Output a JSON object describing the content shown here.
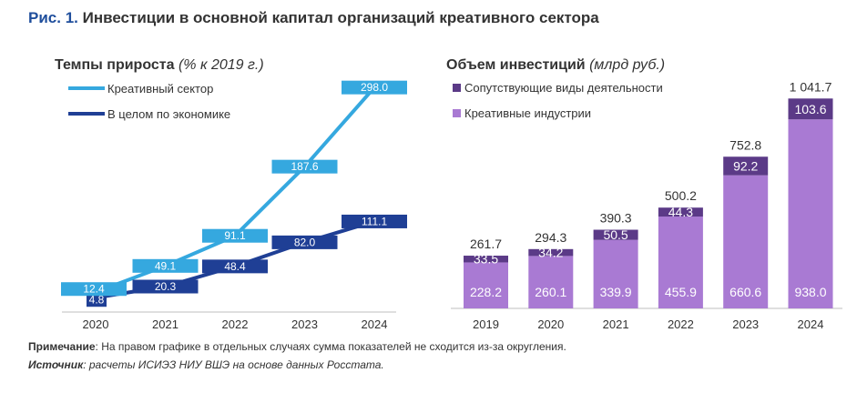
{
  "figure": {
    "number": "Рис. 1.",
    "title": "Инвестиции в основной капитал организаций креативного сектора"
  },
  "colors": {
    "creative_line": "#35a8df",
    "economy_line": "#1f3f95",
    "creative_industries": "#a97ad3",
    "related_activities": "#5b3a87"
  },
  "chart_data": [
    {
      "type": "line",
      "title": "Темпы прироста",
      "unit": "(% к 2019 г.)",
      "categories": [
        "2020",
        "2021",
        "2022",
        "2023",
        "2024"
      ],
      "series": [
        {
          "name": "Креативный сектор",
          "color": "#35a8df",
          "values": [
            12.4,
            49.1,
            91.1,
            187.6,
            298.0
          ]
        },
        {
          "name": "В целом по экономике",
          "color": "#1f3f95",
          "values": [
            4.8,
            20.3,
            48.4,
            82.0,
            111.1
          ]
        }
      ],
      "legend_position": "top-left",
      "grid": false
    },
    {
      "type": "bar",
      "stacked": true,
      "title": "Объем инвестиций",
      "unit": "(млрд руб.)",
      "categories": [
        "2019",
        "2020",
        "2021",
        "2022",
        "2023",
        "2024"
      ],
      "series": [
        {
          "name": "Креативные индустрии",
          "color": "#a97ad3",
          "values": [
            228.2,
            260.1,
            339.9,
            455.9,
            660.6,
            938.0
          ]
        },
        {
          "name": "Сопутствующие виды деятельности",
          "color": "#5b3a87",
          "values": [
            33.5,
            34.2,
            50.5,
            44.3,
            92.2,
            103.6
          ]
        }
      ],
      "totals": [
        "261.7",
        "294.3",
        "390.3",
        "500.2",
        "752.8",
        "1 041.7"
      ],
      "legend_position": "top-left",
      "grid": false
    }
  ],
  "notes": {
    "note_label": "Примечание",
    "note_text": ": На правом графике в отдельных случаях сумма показателей не сходится из-за округления.",
    "source_label": "Источник",
    "source_text": ": расчеты ИСИЭЗ НИУ ВШЭ на основе данных Росстата."
  }
}
